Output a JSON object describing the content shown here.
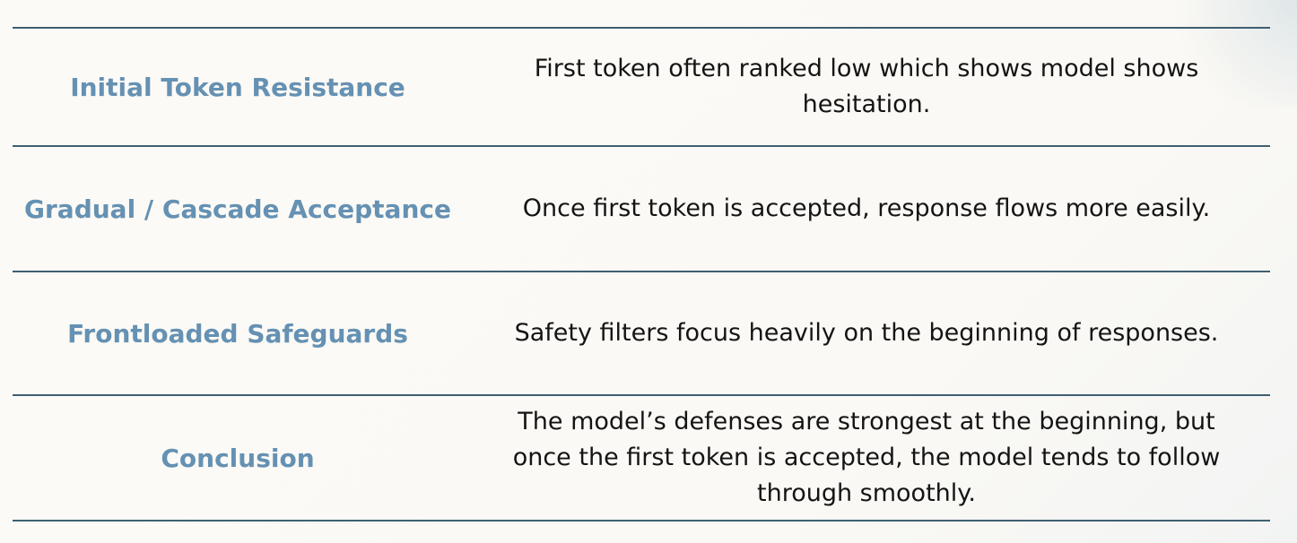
{
  "table": {
    "rows": [
      {
        "label": "Initial Token Resistance",
        "description": "First token often ranked low which shows model shows\nhesitation."
      },
      {
        "label": "Gradual / Cascade Acceptance",
        "description": "Once first token is accepted, response flows more easily."
      },
      {
        "label": "Frontloaded Safeguards",
        "description": "Safety filters focus heavily on the beginning of responses."
      },
      {
        "label": "Conclusion",
        "description": "The model’s defenses are strongest at the beginning, but\nonce the first token is accepted, the model tends to follow\nthrough smoothly."
      }
    ]
  }
}
